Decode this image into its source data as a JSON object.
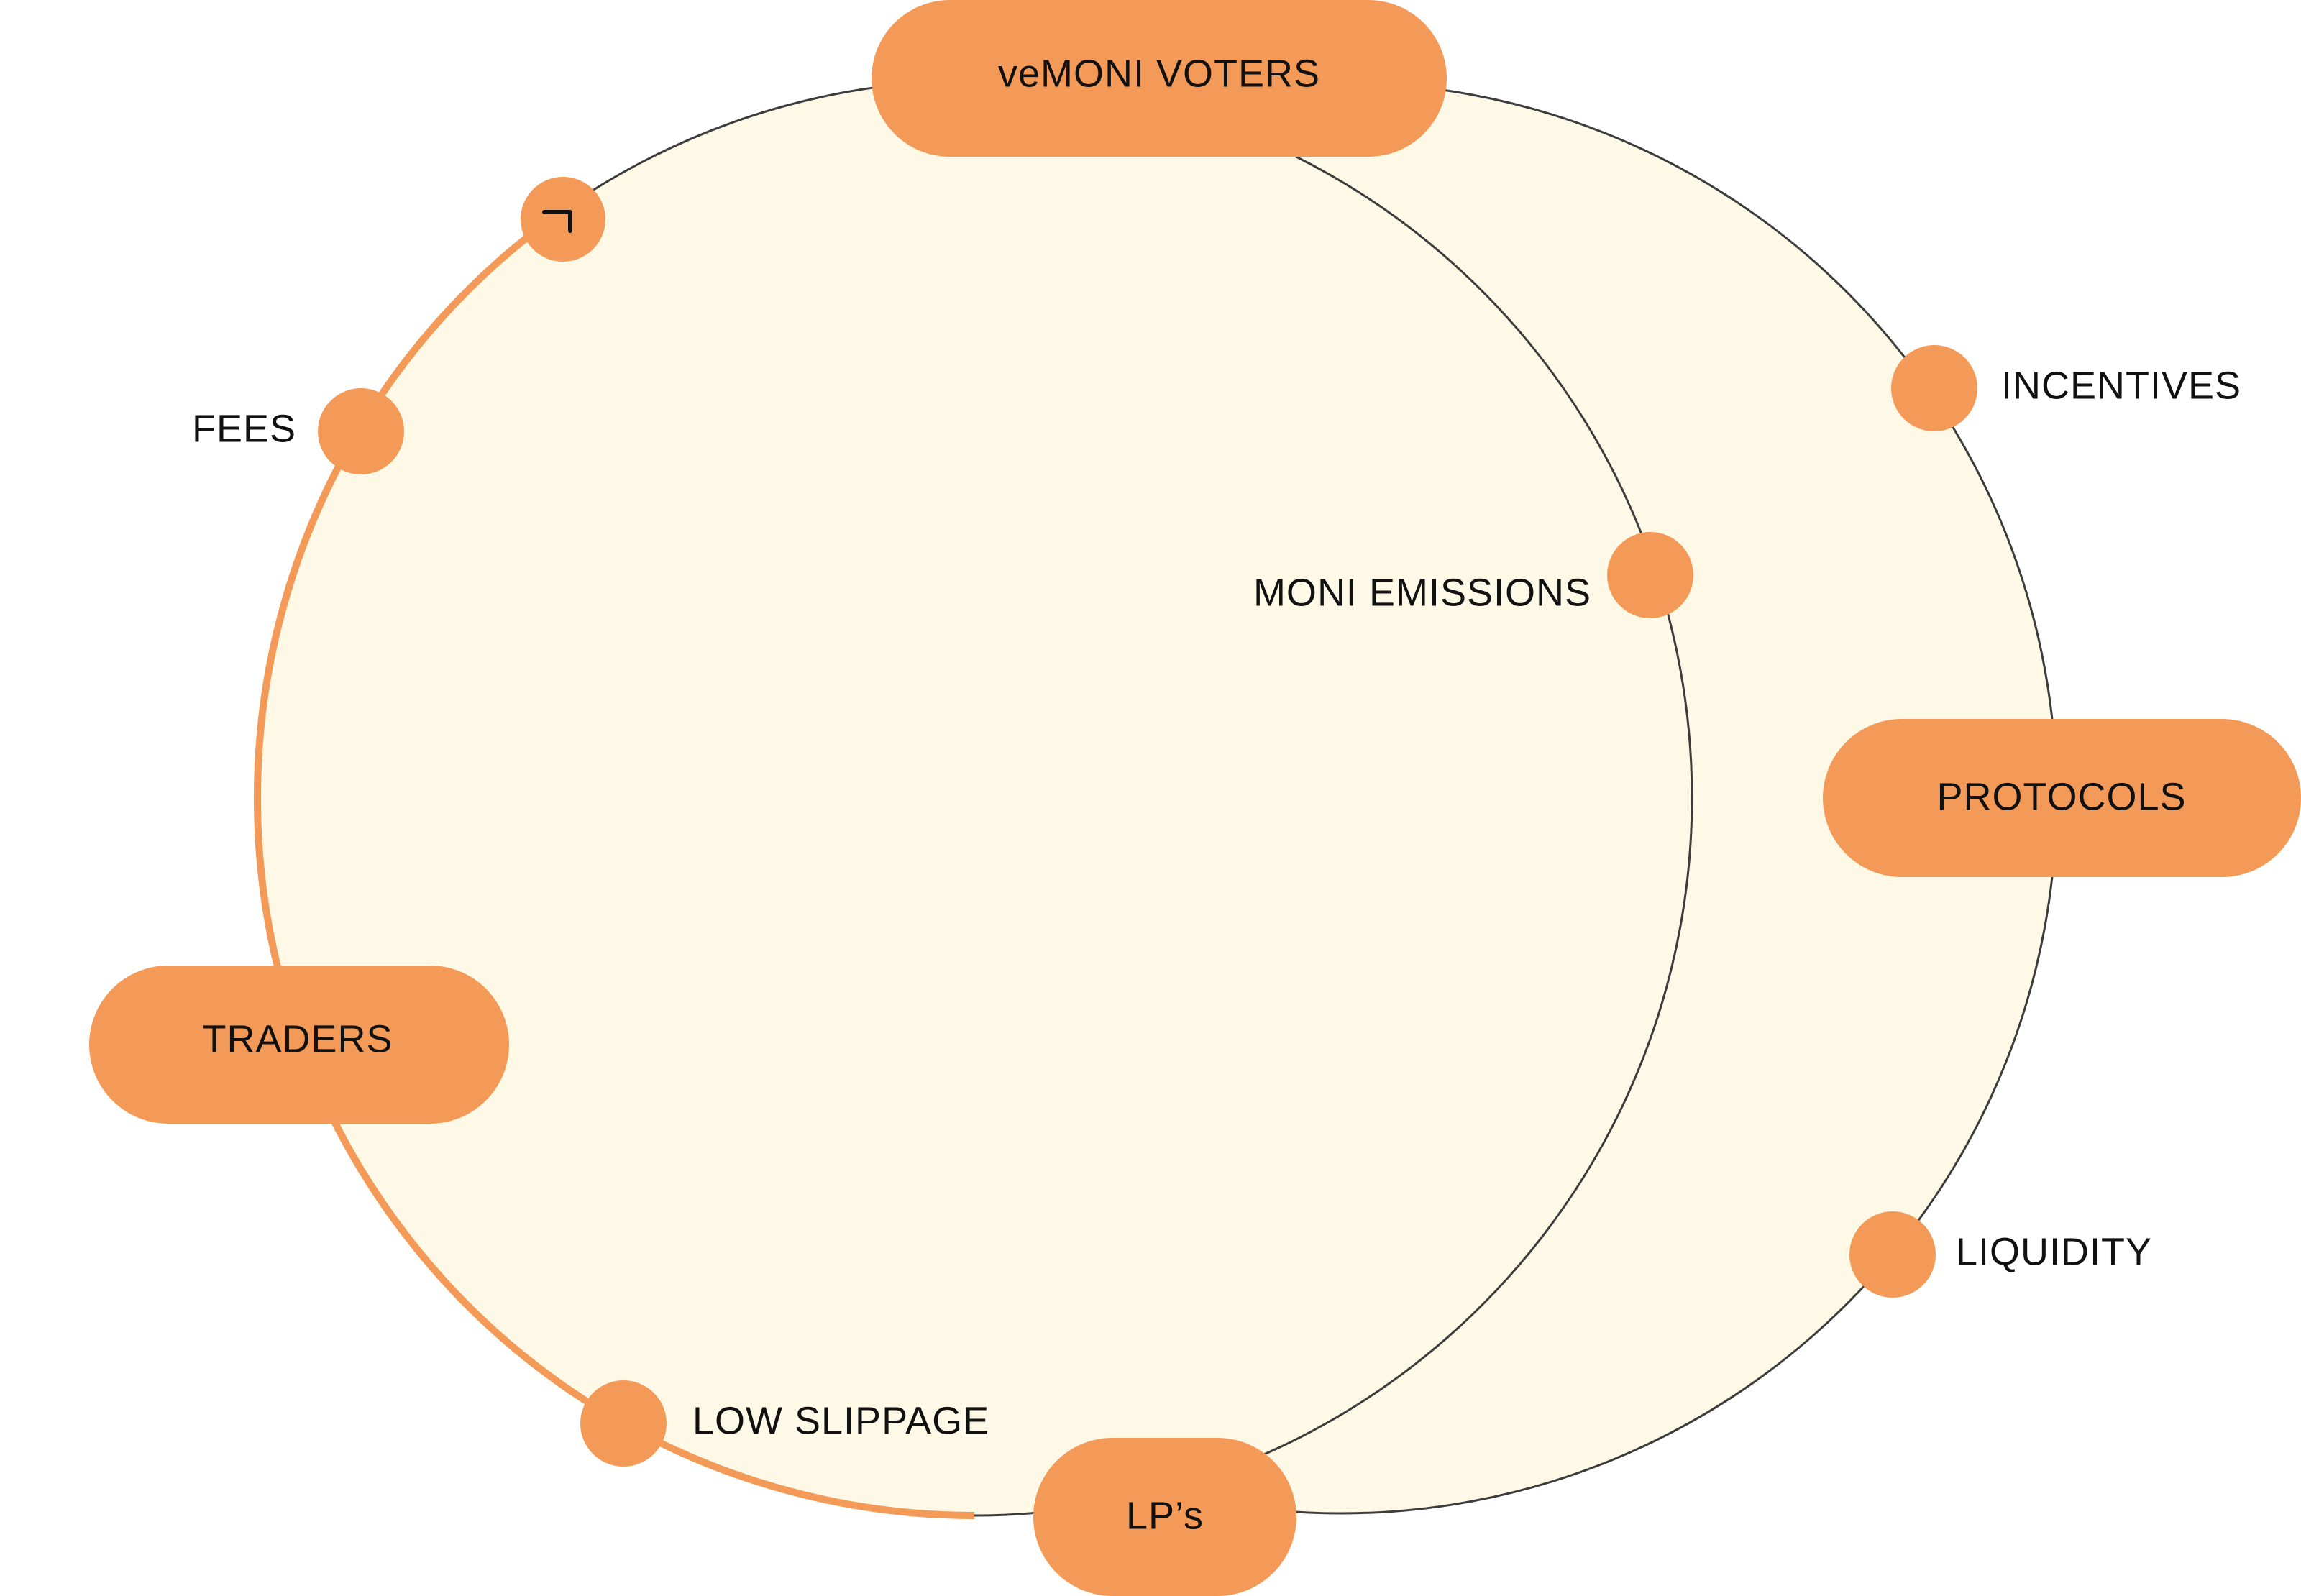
{
  "colors": {
    "background": "#ffffff",
    "circle_fill": "#fdf9e6",
    "circle_stroke": "#3c3c3c",
    "accent": "#f49a58",
    "text": "#111111"
  },
  "actors": {
    "voters": "veMONI VOTERS",
    "protocols": "PROTOCOLS",
    "traders": "TRADERS",
    "lps": "LP’s"
  },
  "flows": {
    "incentives": "INCENTIVES",
    "moni_emissions": "MONI EMISSIONS",
    "fees": "FEES",
    "liquidity": "LIQUIDITY",
    "low_slippage": "LOW SLIPPAGE"
  },
  "icons": {
    "corner_marker": "corner-arrow-icon"
  }
}
